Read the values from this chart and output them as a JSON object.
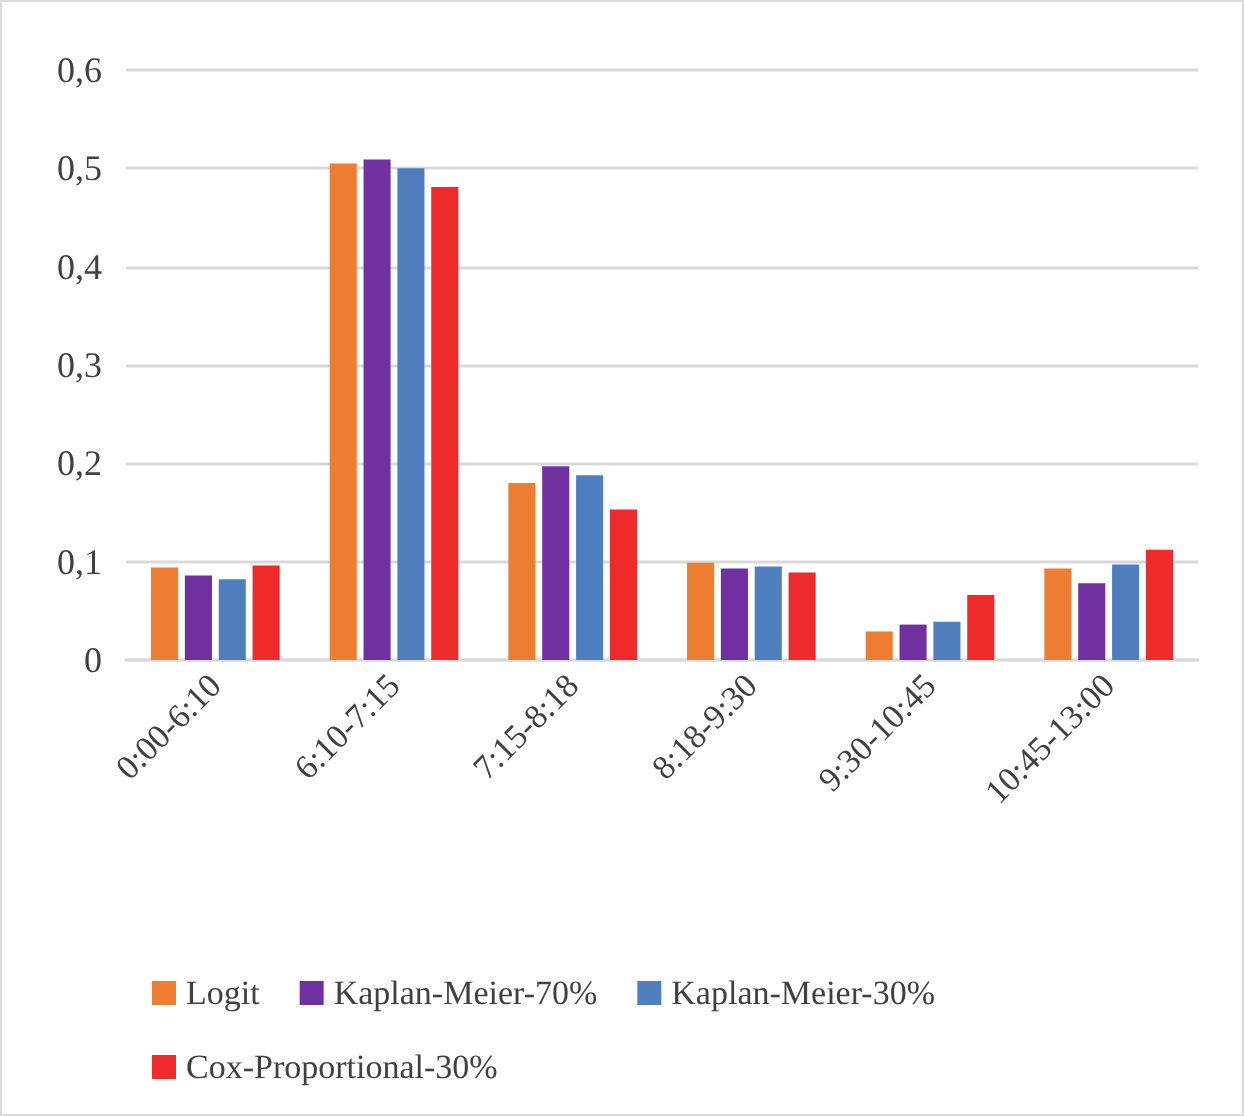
{
  "chart_data": {
    "type": "bar",
    "categories": [
      "0:00-6:10",
      "6:10-7:15",
      "7:15-8:18",
      "8:18-9:30",
      "9:30-10:45",
      "10:45-13:00"
    ],
    "series": [
      {
        "name": "Logit",
        "color": "#ed7d31",
        "values": [
          0.094,
          0.505,
          0.18,
          0.099,
          0.029,
          0.093
        ]
      },
      {
        "name": "Kaplan-Meier-70%",
        "color": "#7030a0",
        "values": [
          0.086,
          0.509,
          0.197,
          0.093,
          0.036,
          0.078
        ]
      },
      {
        "name": "Kaplan-Meier-30%",
        "color": "#4f7fbf",
        "values": [
          0.082,
          0.5,
          0.188,
          0.095,
          0.039,
          0.097
        ]
      },
      {
        "name": "Cox-Proportional-30%",
        "color": "#ee2a2a",
        "values": [
          0.096,
          0.481,
          0.153,
          0.089,
          0.066,
          0.112
        ]
      }
    ],
    "ylim": [
      0,
      0.6
    ],
    "yticks": [
      0,
      {
        "value": 0.1,
        "label": "0,1"
      },
      {
        "value": 0.2,
        "label": "0,2"
      },
      {
        "value": 0.3,
        "label": "0,3"
      },
      {
        "value": 0.4,
        "label": "0,4"
      },
      {
        "value": 0.5,
        "label": "0,5"
      },
      {
        "value": 0.6,
        "label": "0,6"
      }
    ],
    "grid": "y",
    "legend": "bottom"
  }
}
